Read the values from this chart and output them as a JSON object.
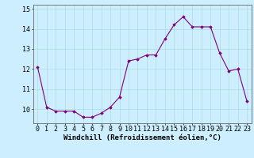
{
  "x": [
    0,
    1,
    2,
    3,
    4,
    5,
    6,
    7,
    8,
    9,
    10,
    11,
    12,
    13,
    14,
    15,
    16,
    17,
    18,
    19,
    20,
    21,
    22,
    23
  ],
  "y": [
    12.1,
    10.1,
    9.9,
    9.9,
    9.9,
    9.6,
    9.6,
    9.8,
    10.1,
    10.6,
    12.4,
    12.5,
    12.7,
    12.7,
    13.5,
    14.2,
    14.6,
    14.1,
    14.1,
    14.1,
    12.8,
    11.9,
    12.0,
    10.4
  ],
  "line_color": "#800080",
  "marker": "D",
  "marker_size": 1.8,
  "bg_color": "#cceeff",
  "grid_color": "#aadddd",
  "xlabel": "Windchill (Refroidissement éolien,°C)",
  "xlabel_fontsize": 6.5,
  "tick_fontsize": 6.0,
  "ylim": [
    9.3,
    15.2
  ],
  "xlim": [
    -0.5,
    23.5
  ],
  "yticks": [
    10,
    11,
    12,
    13,
    14,
    15
  ],
  "xticks": [
    0,
    1,
    2,
    3,
    4,
    5,
    6,
    7,
    8,
    9,
    10,
    11,
    12,
    13,
    14,
    15,
    16,
    17,
    18,
    19,
    20,
    21,
    22,
    23
  ],
  "linewidth": 0.8
}
